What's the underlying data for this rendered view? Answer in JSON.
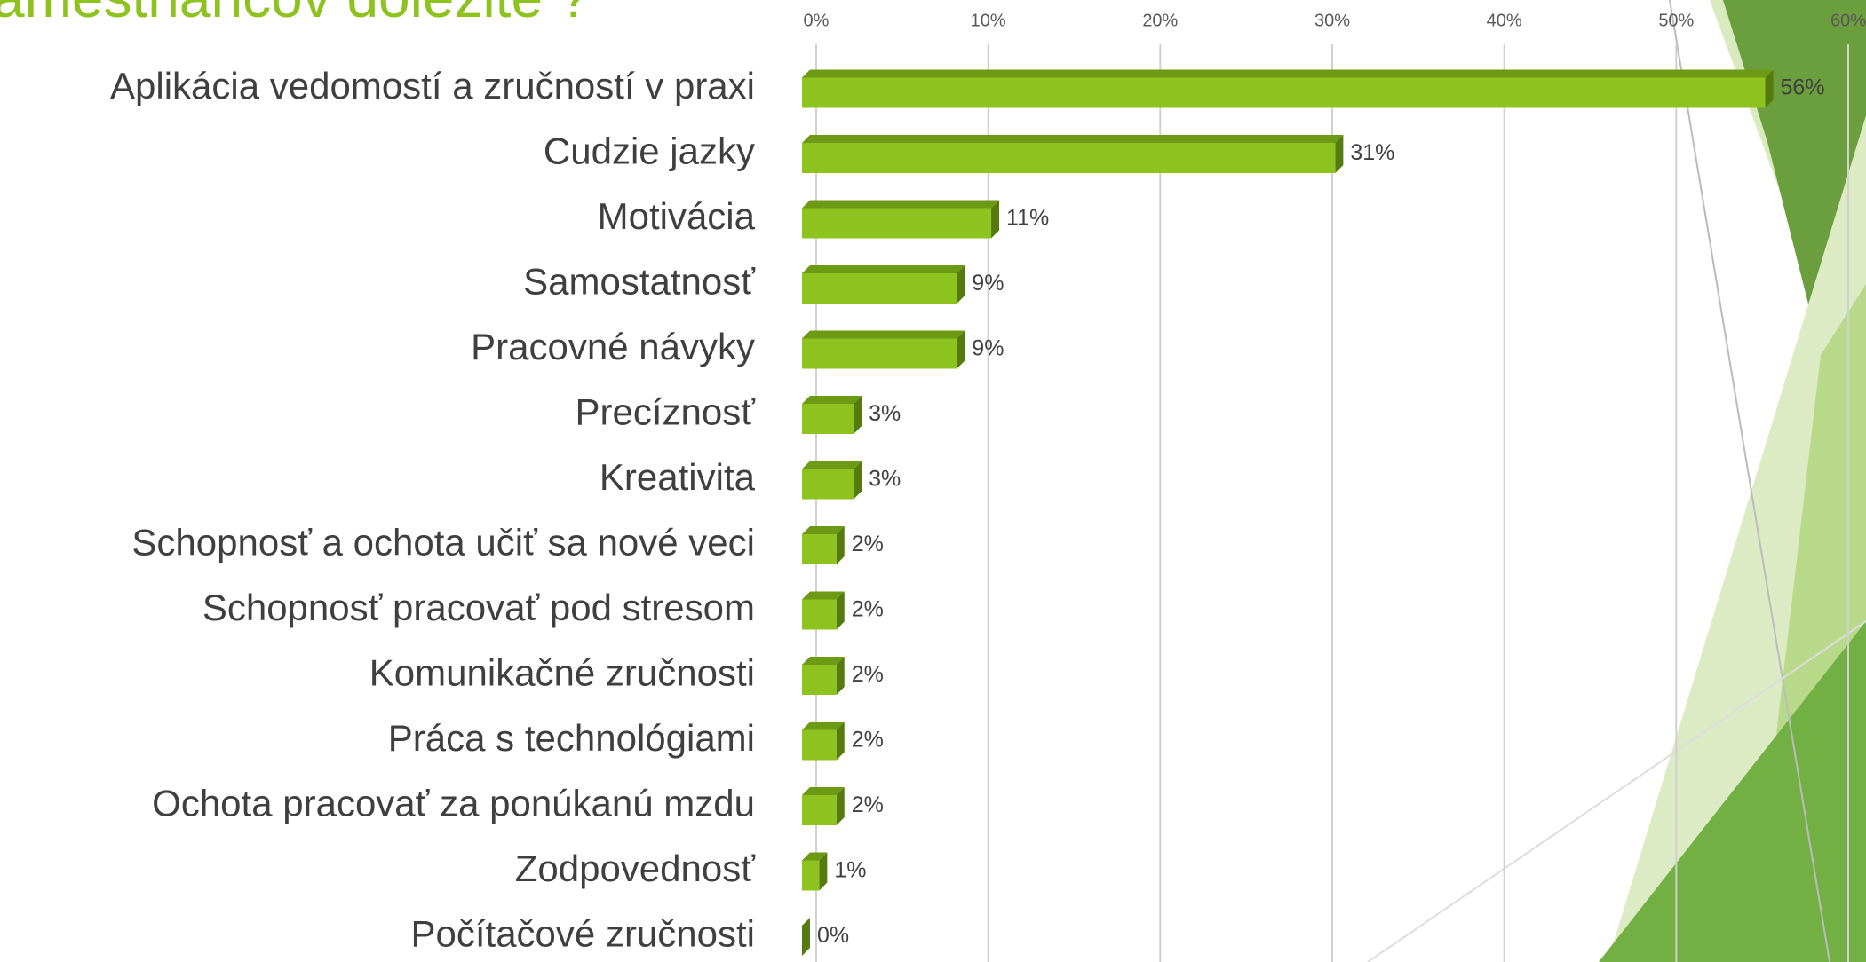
{
  "chart_data": {
    "type": "bar3d",
    "orientation": "horizontal",
    "title": "amestnancov dôležité ?",
    "categories": [
      "Aplikácia vedomostí a zručností v praxi",
      "Cudzie jazky",
      "Motivácia",
      "Samostatnosť",
      "Pracovné návyky",
      "Precíznosť",
      "Kreativita",
      "Schopnosť a ochota učiť  sa nové veci",
      "Schopnosť pracovať pod stresom",
      "Komunikačné zručnosti",
      "Práca s technológiami",
      "Ochota pracovať za ponúkanú mzdu",
      "Zodpovednosť",
      "Počítačové zručnosti"
    ],
    "values": [
      56,
      31,
      11,
      9,
      9,
      3,
      3,
      2,
      2,
      2,
      2,
      2,
      1,
      0
    ],
    "value_labels": [
      "56%",
      "31%",
      "11%",
      "9%",
      "9%",
      "3%",
      "3%",
      "2%",
      "2%",
      "2%",
      "2%",
      "2%",
      "1%",
      "0%"
    ],
    "color": "#8dc21f",
    "xlim": [
      0,
      60
    ],
    "xticks": [
      {
        "value": 0,
        "label": "0%"
      },
      {
        "value": 10,
        "label": "10%"
      },
      {
        "value": 20,
        "label": "20%"
      },
      {
        "value": 30,
        "label": "30%"
      },
      {
        "value": 40,
        "label": "40%"
      },
      {
        "value": 50,
        "label": "50%"
      },
      {
        "value": 60,
        "label": "60%"
      }
    ],
    "grid": true
  }
}
